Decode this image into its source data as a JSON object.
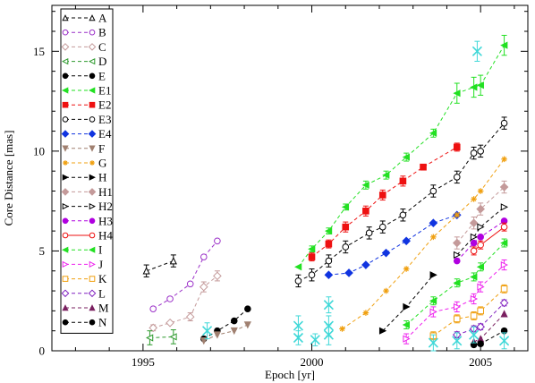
{
  "chart_data": {
    "type": "line",
    "xlabel": "Epoch [yr]",
    "ylabel": "Core Distance [mas]",
    "xlim": [
      1992.3,
      2006.4
    ],
    "ylim": [
      0,
      17.3
    ],
    "x_ticks": [
      1995,
      2000,
      2005
    ],
    "y_ticks": [
      0,
      5,
      10,
      15
    ],
    "x_tick_labels": [
      "1995",
      "2000",
      "2005"
    ],
    "y_tick_labels": [
      "0",
      "5",
      "10",
      "15"
    ],
    "legend_position": "top-left",
    "series": [
      {
        "name": "A",
        "color": "#000000",
        "marker": "triangle-open",
        "x": [
          1995.1,
          1995.9
        ],
        "y": [
          4.0,
          4.5
        ],
        "err": [
          0.3,
          0.3
        ]
      },
      {
        "name": "B",
        "color": "#9b30c8",
        "marker": "circle-open",
        "x": [
          1995.3,
          1995.8,
          1996.4,
          1996.8,
          1997.2
        ],
        "y": [
          2.1,
          2.6,
          3.35,
          4.7,
          5.5
        ],
        "err": [
          0,
          0,
          0,
          0,
          0
        ]
      },
      {
        "name": "C",
        "color": "#c49a9a",
        "marker": "diamond-open",
        "x": [
          1995.3,
          1995.8,
          1996.4,
          1996.8,
          1997.2
        ],
        "y": [
          1.15,
          1.4,
          1.7,
          3.2,
          3.75
        ],
        "err": [
          0.15,
          0,
          0.2,
          0.25,
          0.25
        ]
      },
      {
        "name": "D",
        "color": "#2e9a2e",
        "marker": "triangle-left-open",
        "x": [
          1995.2,
          1995.9
        ],
        "y": [
          0.65,
          0.7
        ],
        "err": [
          0.35,
          0.35
        ]
      },
      {
        "name": "E",
        "color": "#000000",
        "marker": "circle-filled",
        "x": [
          1996.8,
          1997.2,
          1997.7,
          1998.1
        ],
        "y": [
          0.6,
          1.0,
          1.5,
          2.1
        ],
        "err": [
          0,
          0,
          0,
          0
        ]
      },
      {
        "name": "E1",
        "color": "#22e022",
        "marker": "triangle-left-filled",
        "x": [
          1999.6,
          2000.0,
          2000.5,
          2001.0,
          2001.6,
          2002.2,
          2002.8,
          2003.6,
          2004.3,
          2004.8,
          2005.0,
          2005.7
        ],
        "y": [
          4.2,
          5.1,
          6.0,
          7.2,
          8.3,
          8.8,
          9.7,
          10.9,
          12.9,
          13.2,
          13.3,
          15.3
        ],
        "err": [
          0,
          0.15,
          0.15,
          0.15,
          0.2,
          0.2,
          0.2,
          0.2,
          0.5,
          0.5,
          0.5,
          0.5
        ]
      },
      {
        "name": "E2",
        "color": "#ee1111",
        "marker": "square-filled",
        "x": [
          2000.0,
          2000.5,
          2001.0,
          2001.6,
          2002.1,
          2002.7,
          2003.3,
          2004.3
        ],
        "y": [
          4.7,
          5.35,
          6.2,
          7.0,
          7.8,
          8.5,
          9.2,
          10.2
        ],
        "err": [
          0.2,
          0.2,
          0.25,
          0.25,
          0.25,
          0.25,
          0,
          0.2
        ]
      },
      {
        "name": "E3",
        "color": "#000000",
        "marker": "circle-open",
        "x": [
          1999.6,
          2000.0,
          2000.5,
          2001.0,
          2001.7,
          2002.1,
          2002.7,
          2003.6,
          2004.3,
          2004.8,
          2005.0,
          2005.7
        ],
        "y": [
          3.5,
          3.8,
          4.5,
          5.2,
          5.9,
          6.2,
          6.8,
          8.0,
          8.7,
          9.9,
          10.0,
          11.4
        ],
        "err": [
          0.3,
          0.3,
          0.3,
          0.3,
          0.3,
          0.3,
          0.3,
          0.3,
          0.3,
          0.3,
          0.3,
          0.3
        ]
      },
      {
        "name": "E4",
        "color": "#1034e0",
        "marker": "diamond-filled",
        "x": [
          2000.5,
          2001.1,
          2001.6,
          2002.2,
          2002.8,
          2003.6,
          2004.3
        ],
        "y": [
          3.8,
          3.9,
          4.3,
          4.9,
          5.5,
          6.4,
          6.8
        ],
        "err": [
          0,
          0,
          0,
          0,
          0,
          0,
          0
        ]
      },
      {
        "name": "F",
        "color": "#a08070",
        "marker": "triangle-down-filled",
        "x": [
          1996.8,
          1997.2,
          1997.7,
          1998.1
        ],
        "y": [
          0.5,
          0.8,
          1.0,
          1.3
        ],
        "err": [
          0,
          0,
          0,
          0
        ]
      },
      {
        "name": "G",
        "color": "#f0a010",
        "marker": "star-filled",
        "x": [
          2000.9,
          2001.6,
          2002.2,
          2002.8,
          2003.6,
          2004.3,
          2004.8,
          2005.0,
          2005.7
        ],
        "y": [
          1.1,
          1.9,
          3.0,
          4.1,
          5.7,
          6.8,
          7.6,
          8.0,
          9.6
        ],
        "err": [
          0,
          0,
          0,
          0,
          0,
          0,
          0,
          0,
          0
        ]
      },
      {
        "name": "H",
        "color": "#000000",
        "marker": "triangle-right-filled",
        "x": [
          2002.1,
          2002.8,
          2003.6
        ],
        "y": [
          1.0,
          2.2,
          3.8
        ],
        "err": [
          0,
          0,
          0
        ]
      },
      {
        "name": "H1",
        "color": "#c49a9a",
        "marker": "diamond-filled",
        "x": [
          2004.3,
          2004.8,
          2005.0,
          2005.7
        ],
        "y": [
          5.4,
          6.4,
          7.1,
          8.2
        ],
        "err": [
          0.3,
          0.3,
          0.3,
          0.3
        ]
      },
      {
        "name": "H2",
        "color": "#000000",
        "marker": "triangle-right-open",
        "x": [
          2004.3,
          2004.8,
          2005.0,
          2005.7
        ],
        "y": [
          4.8,
          5.7,
          6.2,
          7.2
        ],
        "err": [
          0,
          0,
          0,
          0
        ]
      },
      {
        "name": "H3",
        "color": "#b000e0",
        "marker": "circle-filled",
        "x": [
          2004.3,
          2004.8,
          2005.0,
          2005.7
        ],
        "y": [
          4.5,
          5.4,
          5.7,
          6.5
        ],
        "err": [
          0,
          0,
          0,
          0
        ]
      },
      {
        "name": "H4",
        "color": "#ee1111",
        "marker": "circle-open",
        "x": [
          2004.8,
          2005.0,
          2005.7
        ],
        "y": [
          5.0,
          5.3,
          6.2
        ],
        "err": [
          0.2,
          0.2,
          0.2
        ]
      },
      {
        "name": "I",
        "color": "#22e022",
        "marker": "triangle-left-filled",
        "x": [
          2002.8,
          2003.6,
          2004.3,
          2004.8,
          2005.0,
          2005.7
        ],
        "y": [
          1.3,
          2.5,
          3.4,
          3.7,
          4.2,
          5.4
        ],
        "err": [
          0.2,
          0.2,
          0.2,
          0.2,
          0.2,
          0.2
        ]
      },
      {
        "name": "J",
        "color": "#ee22ee",
        "marker": "triangle-right-open",
        "x": [
          2002.8,
          2003.6,
          2004.3,
          2004.8,
          2005.0,
          2005.7
        ],
        "y": [
          0.6,
          1.95,
          2.2,
          2.6,
          3.2,
          4.3
        ],
        "err": [
          0.25,
          0.25,
          0.25,
          0.25,
          0.25,
          0.25
        ]
      },
      {
        "name": "K",
        "color": "#f0a010",
        "marker": "square-open",
        "x": [
          2003.6,
          2004.3,
          2004.8,
          2005.0,
          2005.7
        ],
        "y": [
          0.75,
          1.6,
          1.75,
          2.0,
          3.1
        ],
        "err": [
          0.2,
          0.2,
          0.2,
          0.2,
          0.2
        ]
      },
      {
        "name": "L",
        "color": "#8020c0",
        "marker": "diamond-open",
        "x": [
          2004.3,
          2004.8,
          2005.0,
          2005.7
        ],
        "y": [
          0.8,
          1.1,
          1.2,
          2.4
        ],
        "err": [
          0.15,
          0.15,
          0.15,
          0.15
        ]
      },
      {
        "name": "M",
        "color": "#7a2060",
        "marker": "triangle-filled",
        "x": [
          2004.8,
          2005.0,
          2005.7
        ],
        "y": [
          0.45,
          0.6,
          1.85
        ],
        "err": [
          0,
          0,
          0
        ]
      },
      {
        "name": "N",
        "color": "#000000",
        "marker": "circle-filled",
        "x": [
          2004.8,
          2005.0,
          2005.7
        ],
        "y": [
          0.3,
          0.35,
          1.0
        ],
        "err": [
          0.1,
          0.1,
          0.1
        ]
      }
    ],
    "extra_points": {
      "color": "#40d8d8",
      "marker": "x-large",
      "x": [
        1996.9,
        1999.6,
        1999.6,
        2000.1,
        2000.5,
        2000.5,
        2000.5,
        2003.6,
        2004.3,
        2004.8,
        2004.9,
        2005.7
      ],
      "y": [
        1.0,
        1.25,
        0.65,
        0.55,
        2.3,
        1.25,
        0.8,
        0.4,
        0.5,
        0.8,
        15.0,
        0.5
      ],
      "err": [
        0.4,
        0.5,
        0.35,
        0.3,
        0.4,
        0.5,
        0.5,
        0.4,
        0.4,
        0.4,
        0.5,
        0.4
      ]
    }
  }
}
